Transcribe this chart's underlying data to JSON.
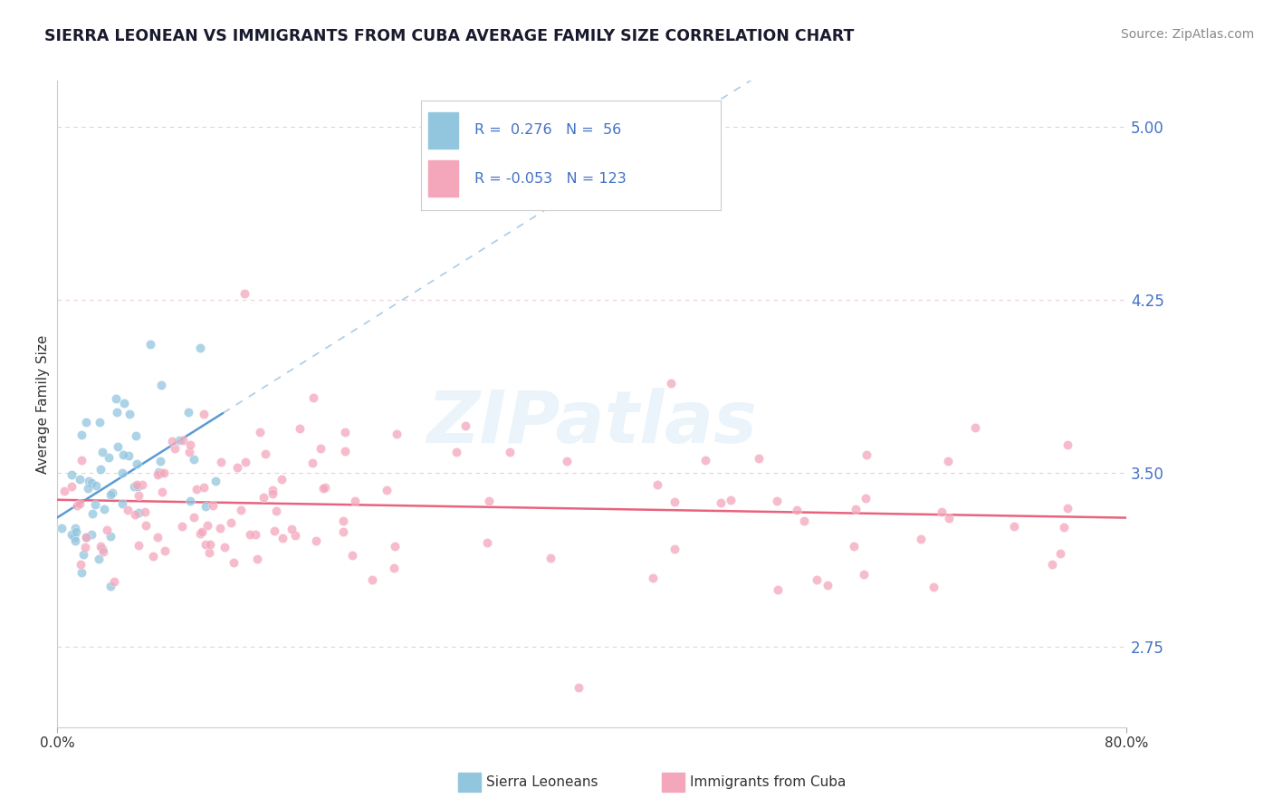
{
  "title": "SIERRA LEONEAN VS IMMIGRANTS FROM CUBA AVERAGE FAMILY SIZE CORRELATION CHART",
  "source_text": "Source: ZipAtlas.com",
  "ylabel": "Average Family Size",
  "ytick_labels": [
    "2.75",
    "3.50",
    "4.25",
    "5.00"
  ],
  "ytick_values": [
    2.75,
    3.5,
    4.25,
    5.0
  ],
  "xlim": [
    0.0,
    80.0
  ],
  "ylim": [
    2.4,
    5.2
  ],
  "legend_r1": "R =  0.276",
  "legend_n1": "N =  56",
  "legend_r2": "R = -0.053",
  "legend_n2": "N = 123",
  "blue_color": "#92c5de",
  "pink_color": "#f4a6bb",
  "blue_line_color": "#5b9bd5",
  "pink_line_color": "#e8637e",
  "dashed_line_color": "#aacce8",
  "tick_color": "#4472c4",
  "grid_color": "#e8d0d8",
  "watermark": "ZIPatlas",
  "watermark_color": "#ddeef8",
  "legend_text_color": "#4472c4",
  "title_color": "#1a1a2e",
  "source_color": "#888888",
  "spine_color": "#cccccc",
  "bottom_label1": "Sierra Leoneans",
  "bottom_label2": "Immigrants from Cuba"
}
